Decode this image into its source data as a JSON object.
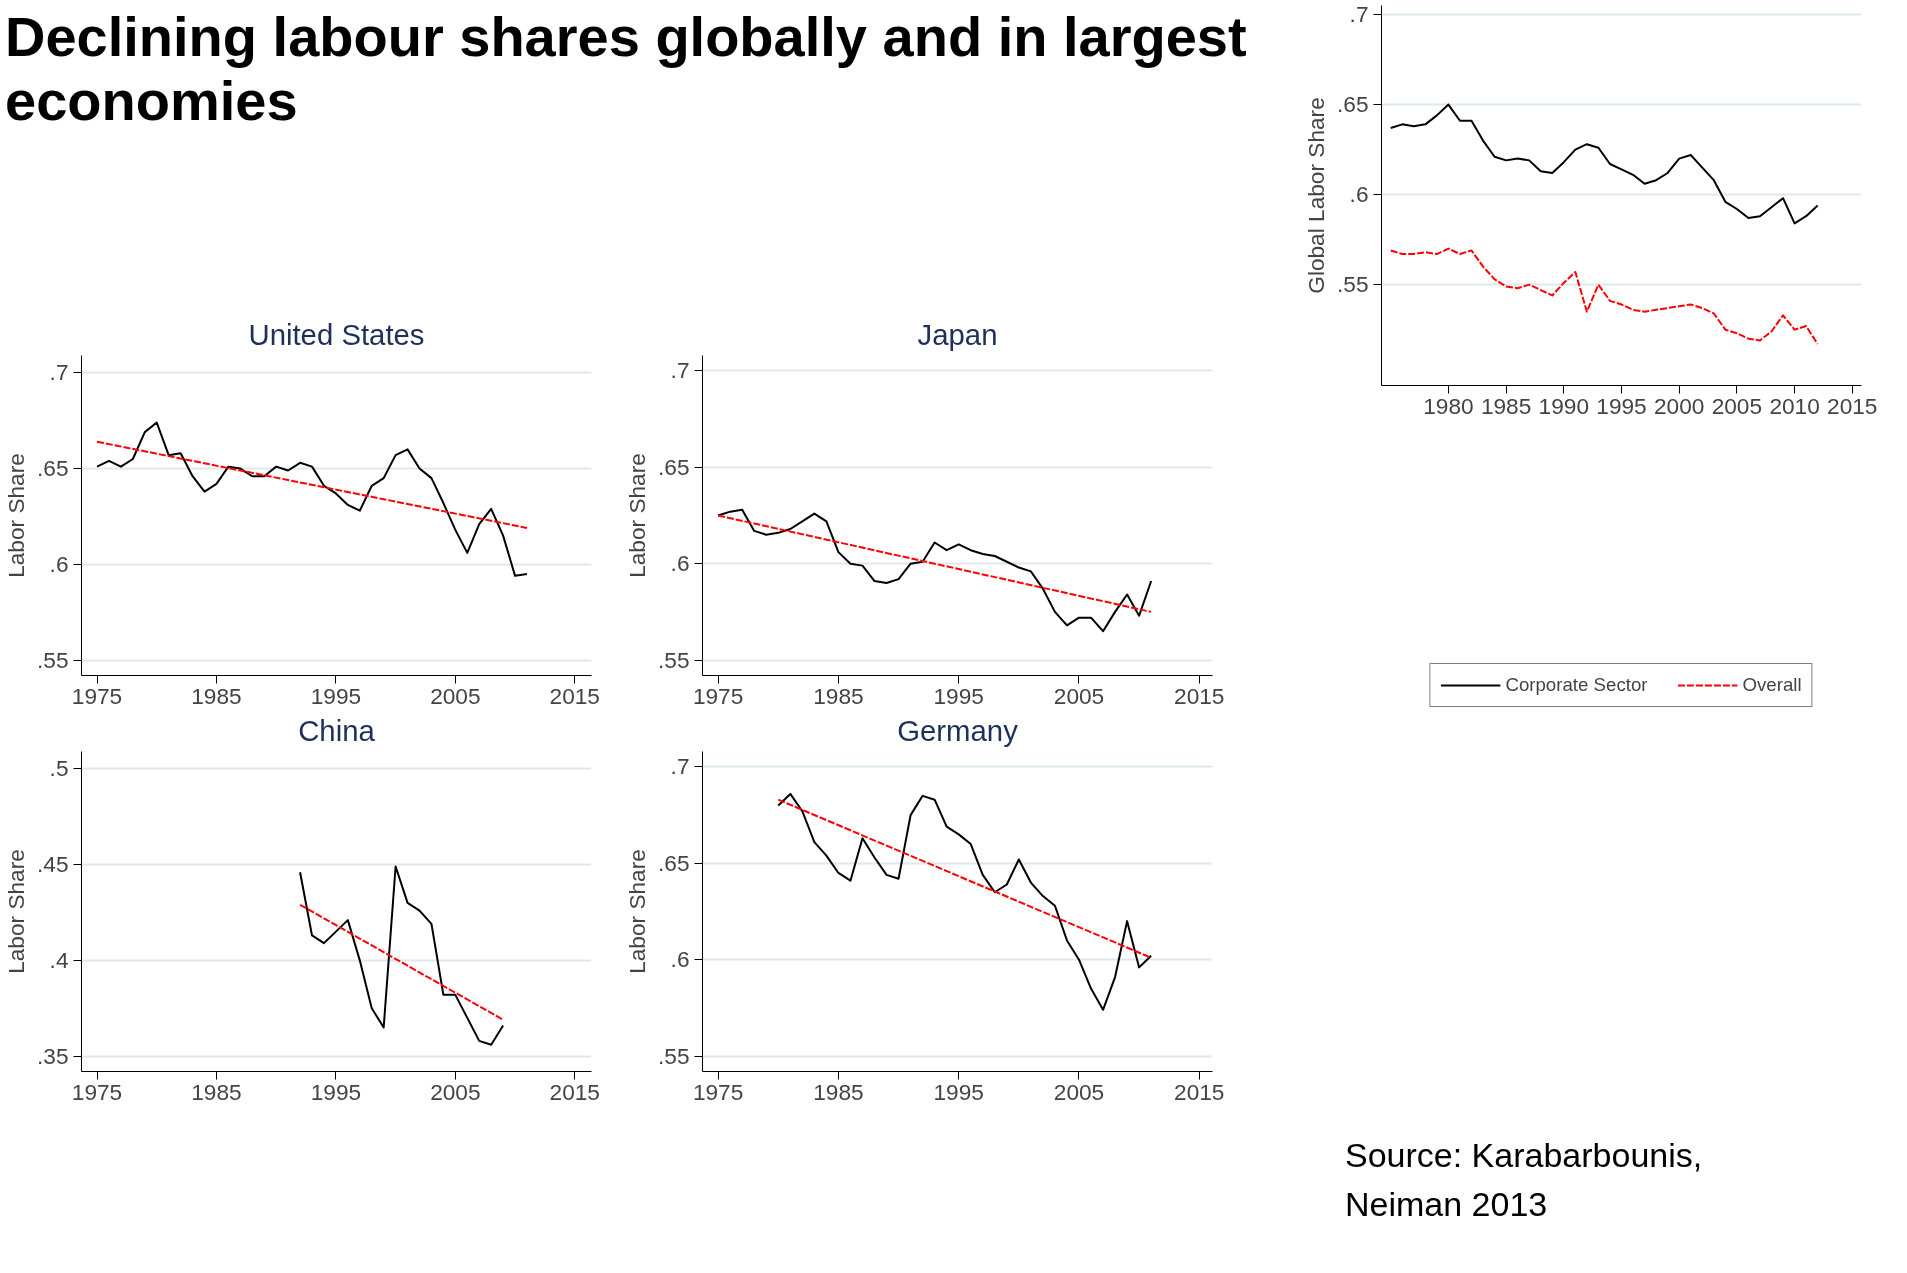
{
  "chart_data": [
    {
      "type": "line",
      "title": "United States",
      "ylabel": "Labor Share",
      "xlim": [
        1973.7,
        2016.4
      ],
      "ylim": [
        0.542,
        0.709
      ],
      "xticks": [
        1975,
        1985,
        1995,
        2005,
        2015
      ],
      "yticks": [
        {
          "value": 0.55,
          "label": ".55"
        },
        {
          "value": 0.6,
          "label": ".6"
        },
        {
          "value": 0.65,
          "label": ".65"
        },
        {
          "value": 0.7,
          "label": ".7"
        }
      ],
      "grid": "y",
      "series": [
        {
          "color": "#000000",
          "line_style": "solid",
          "x": [
            1975,
            1976,
            1977,
            1978,
            1979,
            1980,
            1981,
            1982,
            1983,
            1984,
            1985,
            1986,
            1987,
            1988,
            1989,
            1990,
            1991,
            1992,
            1993,
            1994,
            1995,
            1996,
            1997,
            1998,
            1999,
            2000,
            2001,
            2002,
            2003,
            2004,
            2005,
            2006,
            2007,
            2008,
            2009,
            2010,
            2011
          ],
          "values": [
            0.651,
            0.654,
            0.651,
            0.655,
            0.669,
            0.674,
            0.657,
            0.658,
            0.646,
            0.638,
            0.642,
            0.651,
            0.65,
            0.646,
            0.646,
            0.651,
            0.649,
            0.653,
            0.651,
            0.641,
            0.637,
            0.631,
            0.628,
            0.641,
            0.645,
            0.657,
            0.66,
            0.65,
            0.645,
            0.632,
            0.618,
            0.606,
            0.621,
            0.629,
            0.615,
            0.594,
            0.595
          ]
        },
        {
          "color": "#ff0000",
          "line_style": "dashed",
          "x": [
            1975,
            2011
          ],
          "values": [
            0.664,
            0.619
          ]
        }
      ]
    },
    {
      "type": "line",
      "title": "Japan",
      "ylabel": "Labor Share",
      "xlim": [
        1973.7,
        2016.1
      ],
      "ylim": [
        0.542,
        0.708
      ],
      "xticks": [
        1975,
        1985,
        1995,
        2005,
        2015
      ],
      "yticks": [
        {
          "value": 0.55,
          "label": ".55"
        },
        {
          "value": 0.6,
          "label": ".6"
        },
        {
          "value": 0.65,
          "label": ".65"
        },
        {
          "value": 0.7,
          "label": ".7"
        }
      ],
      "grid": "y",
      "series": [
        {
          "color": "#000000",
          "line_style": "solid",
          "x": [
            1975,
            1976,
            1977,
            1978,
            1979,
            1980,
            1981,
            1982,
            1983,
            1984,
            1985,
            1986,
            1987,
            1988,
            1989,
            1990,
            1991,
            1992,
            1993,
            1994,
            1995,
            1996,
            1997,
            1998,
            1999,
            2000,
            2001,
            2002,
            2003,
            2004,
            2005,
            2006,
            2007,
            2008,
            2009,
            2010,
            2011
          ],
          "values": [
            0.625,
            0.627,
            0.628,
            0.617,
            0.615,
            0.616,
            0.618,
            0.622,
            0.626,
            0.622,
            0.606,
            0.6,
            0.599,
            0.591,
            0.59,
            0.592,
            0.6,
            0.601,
            0.611,
            0.607,
            0.61,
            0.607,
            0.605,
            0.604,
            0.601,
            0.598,
            0.596,
            0.587,
            0.575,
            0.568,
            0.572,
            0.572,
            0.565,
            0.575,
            0.584,
            0.573,
            0.591
          ]
        },
        {
          "color": "#ff0000",
          "line_style": "dashed",
          "x": [
            1975,
            2011
          ],
          "values": [
            0.625,
            0.575
          ]
        }
      ]
    },
    {
      "type": "line",
      "title": "China",
      "ylabel": "Labor Share",
      "xlim": [
        1973.7,
        2016.4
      ],
      "ylim": [
        0.342,
        0.509
      ],
      "xticks": [
        1975,
        1985,
        1995,
        2005,
        2015
      ],
      "yticks": [
        {
          "value": 0.35,
          "label": ".35"
        },
        {
          "value": 0.4,
          "label": ".4"
        },
        {
          "value": 0.45,
          "label": ".45"
        },
        {
          "value": 0.5,
          "label": ".5"
        }
      ],
      "grid": "y",
      "series": [
        {
          "color": "#000000",
          "line_style": "solid",
          "x": [
            1992,
            1993,
            1994,
            1995,
            1996,
            1997,
            1998,
            1999,
            2000,
            2001,
            2002,
            2003,
            2004,
            2005,
            2006,
            2007,
            2008,
            2009
          ],
          "values": [
            0.446,
            0.413,
            0.409,
            0.415,
            0.421,
            0.4,
            0.375,
            0.365,
            0.449,
            0.43,
            0.426,
            0.419,
            0.382,
            0.382,
            0.37,
            0.358,
            0.356,
            0.366
          ]
        },
        {
          "color": "#ff0000",
          "line_style": "dashed",
          "x": [
            1992,
            2009
          ],
          "values": [
            0.429,
            0.369
          ]
        }
      ]
    },
    {
      "type": "line",
      "title": "Germany",
      "ylabel": "Labor Share",
      "xlim": [
        1973.7,
        2016.1
      ],
      "ylim": [
        0.542,
        0.708
      ],
      "xticks": [
        1975,
        1985,
        1995,
        2005,
        2015
      ],
      "yticks": [
        {
          "value": 0.55,
          "label": ".55"
        },
        {
          "value": 0.6,
          "label": ".6"
        },
        {
          "value": 0.65,
          "label": ".65"
        },
        {
          "value": 0.7,
          "label": ".7"
        }
      ],
      "grid": "y",
      "series": [
        {
          "color": "#000000",
          "line_style": "solid",
          "x": [
            1980,
            1981,
            1982,
            1983,
            1984,
            1985,
            1986,
            1987,
            1988,
            1989,
            1990,
            1991,
            1992,
            1993,
            1994,
            1995,
            1996,
            1997,
            1998,
            1999,
            2000,
            2001,
            2002,
            2003,
            2004,
            2005,
            2006,
            2007,
            2008,
            2009,
            2010,
            2011
          ],
          "values": [
            0.68,
            0.686,
            0.677,
            0.661,
            0.654,
            0.645,
            0.641,
            0.663,
            0.653,
            0.644,
            0.642,
            0.675,
            0.685,
            0.683,
            0.669,
            0.665,
            0.66,
            0.644,
            0.635,
            0.639,
            0.652,
            0.64,
            0.633,
            0.628,
            0.61,
            0.6,
            0.585,
            0.574,
            0.591,
            0.62,
            0.596,
            0.602
          ]
        },
        {
          "color": "#ff0000",
          "line_style": "dashed",
          "x": [
            1980,
            2011
          ],
          "values": [
            0.683,
            0.601
          ]
        }
      ]
    },
    {
      "type": "line",
      "title": "Declining labour shares globally and in largest economies",
      "ylabel": "Global Labor Share",
      "xlim": [
        1974.2,
        2015.8
      ],
      "ylim": [
        0.494,
        0.705
      ],
      "xticks": [
        1980,
        1985,
        1990,
        1995,
        2000,
        2005,
        2010,
        2015
      ],
      "yticks": [
        {
          "value": 0.55,
          "label": ".55"
        },
        {
          "value": 0.6,
          "label": ".6"
        },
        {
          "value": 0.65,
          "label": ".65"
        },
        {
          "value": 0.7,
          "label": ".7"
        }
      ],
      "grid": "y",
      "legend": "bottom",
      "annotations": [
        "Source: Karabarbounis, Neiman 2013"
      ],
      "series": [
        {
          "name": "Corporate Sector",
          "color": "#000000",
          "line_style": "solid",
          "x": [
            1975,
            1976,
            1977,
            1978,
            1979,
            1980,
            1981,
            1982,
            1983,
            1984,
            1985,
            1986,
            1987,
            1988,
            1989,
            1990,
            1991,
            1992,
            1993,
            1994,
            1995,
            1996,
            1997,
            1998,
            1999,
            2000,
            2001,
            2002,
            2003,
            2004,
            2005,
            2006,
            2007,
            2008,
            2009,
            2010,
            2011,
            2012
          ],
          "values": [
            0.637,
            0.639,
            0.638,
            0.639,
            0.644,
            0.65,
            0.641,
            0.641,
            0.63,
            0.621,
            0.619,
            0.62,
            0.619,
            0.613,
            0.612,
            0.618,
            0.625,
            0.628,
            0.626,
            0.617,
            0.614,
            0.611,
            0.606,
            0.608,
            0.612,
            0.62,
            0.622,
            0.615,
            0.608,
            0.596,
            0.592,
            0.587,
            0.588,
            0.593,
            0.598,
            0.584,
            0.588,
            0.594
          ]
        },
        {
          "name": "Overall",
          "color": "#ff0000",
          "line_style": "dashed",
          "x": [
            1975,
            1976,
            1977,
            1978,
            1979,
            1980,
            1981,
            1982,
            1983,
            1984,
            1985,
            1986,
            1987,
            1988,
            1989,
            1990,
            1991,
            1992,
            1993,
            1994,
            1995,
            1996,
            1997,
            1998,
            1999,
            2000,
            2001,
            2002,
            2003,
            2004,
            2005,
            2006,
            2007,
            2008,
            2009,
            2010,
            2011,
            2012
          ],
          "values": [
            0.569,
            0.567,
            0.567,
            0.568,
            0.567,
            0.57,
            0.567,
            0.569,
            0.56,
            0.553,
            0.549,
            0.548,
            0.55,
            0.547,
            0.544,
            0.551,
            0.557,
            0.535,
            0.55,
            0.541,
            0.539,
            0.536,
            0.535,
            0.536,
            0.537,
            0.538,
            0.539,
            0.537,
            0.534,
            0.525,
            0.523,
            0.52,
            0.519,
            0.524,
            0.533,
            0.525,
            0.527,
            0.517
          ]
        }
      ]
    }
  ]
}
